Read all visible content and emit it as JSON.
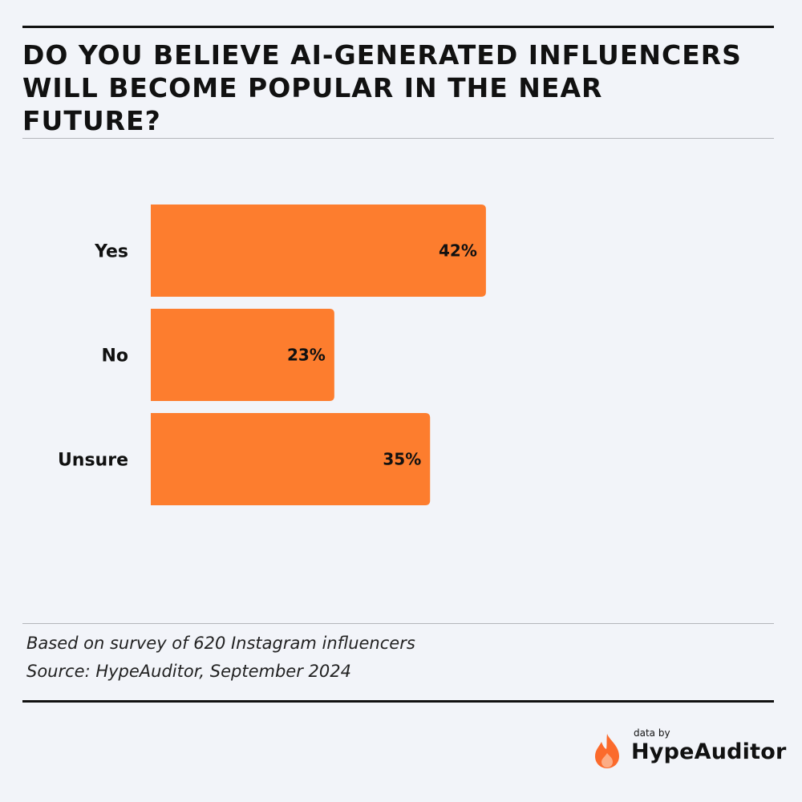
{
  "title": "DO YOU BELIEVE AI-GENERATED INFLUENCERS WILL BECOME POPULAR IN THE NEAR FUTURE?",
  "notes": {
    "survey": "Based on survey of 620 Instagram influencers",
    "source": "Source: HypeAuditor, September 2024"
  },
  "brand": {
    "prefix": "data by",
    "name": "HypeAuditor",
    "icon": "flame-icon",
    "color": "#fb6a2c"
  },
  "colors": {
    "bar": "#fd7d2e",
    "text": "#111111",
    "background": "#f2f4f9"
  },
  "chart_data": {
    "type": "bar",
    "orientation": "horizontal",
    "categories": [
      "Yes",
      "No",
      "Unsure"
    ],
    "values": [
      42,
      23,
      35
    ],
    "value_labels": [
      "42%",
      "23%",
      "35%"
    ],
    "unit": "%",
    "grid": false
  }
}
